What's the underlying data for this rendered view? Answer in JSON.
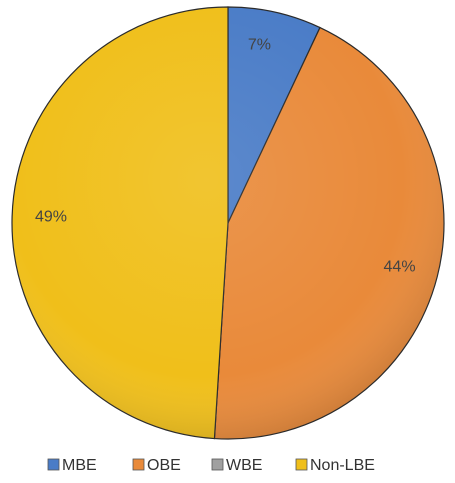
{
  "chart_data": {
    "type": "pie",
    "categories": [
      "MBE",
      "OBE",
      "WBE",
      "Non-LBE"
    ],
    "values": [
      7,
      44,
      0,
      49
    ],
    "data_labels": [
      "7%",
      "44%",
      "",
      "49%"
    ],
    "colors": [
      "#4a7cc7",
      "#e98a3a",
      "#a0a0a0",
      "#f0bf1a"
    ],
    "legend_position": "bottom",
    "start_angle_deg": 0,
    "direction": "clockwise"
  }
}
